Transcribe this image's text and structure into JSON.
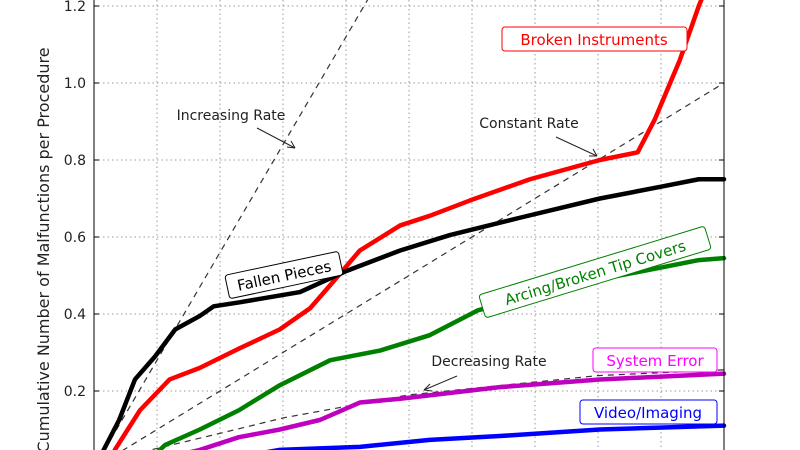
{
  "chart_data": {
    "type": "line",
    "title": "",
    "xlabel": "",
    "ylabel": "Cumulative Number of Malfunctions per Procedure",
    "x_range_grid_units": [
      0,
      10
    ],
    "ylim": [
      0,
      1.2
    ],
    "yticks": [
      "0.2",
      "0.4",
      "0.6",
      "0.8",
      "1.0",
      "1.2"
    ],
    "ytick_values": [
      0.2,
      0.4,
      0.6,
      0.8,
      1.0,
      1.2
    ],
    "grid": true,
    "series": [
      {
        "name": "Broken Instruments",
        "color": "#ff0000",
        "x": [
          0.33,
          0.73,
          1.2,
          1.68,
          2.3,
          2.95,
          3.43,
          3.75,
          4.22,
          4.86,
          5.33,
          5.97,
          6.92,
          8.03,
          8.63,
          8.9,
          9.3,
          9.6,
          9.75
        ],
        "y": [
          0.047,
          0.15,
          0.23,
          0.26,
          0.31,
          0.36,
          0.415,
          0.475,
          0.565,
          0.63,
          0.655,
          0.695,
          0.75,
          0.8,
          0.82,
          0.905,
          1.06,
          1.2,
          1.26
        ]
      },
      {
        "name": "Fallen Pieces",
        "color": "#000000",
        "x": [
          0.1,
          0.4,
          0.65,
          0.97,
          1.29,
          1.68,
          1.9,
          2.3,
          3.27,
          3.98,
          4.86,
          5.65,
          6.76,
          8.03,
          8.98,
          9.6,
          10
        ],
        "y": [
          0.03,
          0.125,
          0.23,
          0.29,
          0.36,
          0.395,
          0.42,
          0.43,
          0.457,
          0.51,
          0.565,
          0.605,
          0.65,
          0.7,
          0.73,
          0.75,
          0.75
        ]
      },
      {
        "name": "Arcing/Broken Tip Covers",
        "color": "#008000",
        "x": [
          1.0,
          1.13,
          1.68,
          2.3,
          2.95,
          3.75,
          4.54,
          5.33,
          6.1,
          7.05,
          8.03,
          8.98,
          9.6,
          10
        ],
        "y": [
          0.04,
          0.06,
          0.1,
          0.15,
          0.215,
          0.28,
          0.305,
          0.345,
          0.41,
          0.45,
          0.49,
          0.52,
          0.54,
          0.545
        ]
      },
      {
        "name": "System Error",
        "color": "#bf00bf",
        "x": [
          1.5,
          1.68,
          2.3,
          2.95,
          3.59,
          4.22,
          4.86,
          6.44,
          8.03,
          10
        ],
        "y": [
          0.04,
          0.047,
          0.08,
          0.1,
          0.125,
          0.17,
          0.18,
          0.21,
          0.23,
          0.245
        ]
      },
      {
        "name": "Video/Imaging",
        "color": "#0000ff",
        "x": [
          2.7,
          2.95,
          4.22,
          5.33,
          6.44,
          8.03,
          10
        ],
        "y": [
          0.04,
          0.047,
          0.055,
          0.073,
          0.083,
          0.1,
          0.11
        ]
      }
    ],
    "reference_lines": [
      {
        "name": "Increasing Rate",
        "x": [
          0.0,
          4.5
        ],
        "y": [
          0.0,
          1.26
        ]
      },
      {
        "name": "Constant Rate",
        "x": [
          0.0,
          10
        ],
        "y": [
          0.0,
          1.0
        ]
      },
      {
        "name": "Decreasing Rate",
        "x": [
          0.6,
          0.9,
          2.0,
          3.0,
          5.0,
          8.0,
          10
        ],
        "y": [
          0.03,
          0.047,
          0.09,
          0.13,
          0.19,
          0.24,
          0.255
        ]
      }
    ],
    "annotations": [
      "Increasing Rate",
      "Constant Rate",
      "Decreasing Rate"
    ],
    "labels": [
      "Broken Instruments",
      "Fallen Pieces",
      "Arcing/Broken Tip Covers",
      "System Error",
      "Video/Imaging"
    ]
  }
}
